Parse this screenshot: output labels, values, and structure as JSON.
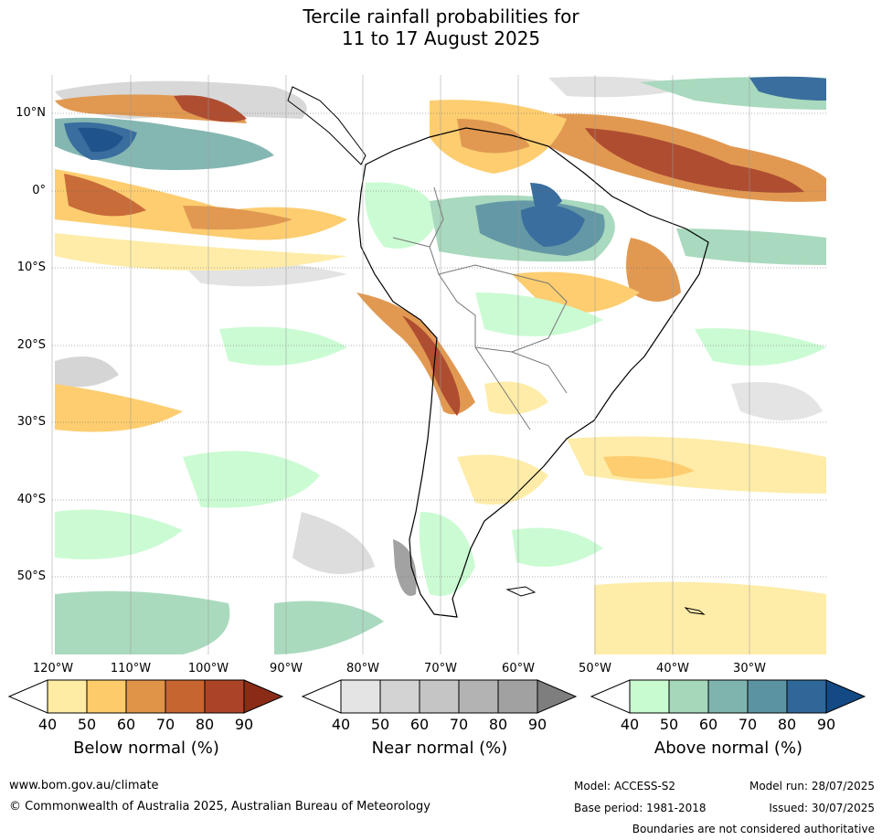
{
  "title_line1": "Tercile rainfall probabilities for",
  "title_line2": "11 to 17 August 2025",
  "lat_labels": [
    "10°N",
    "0°",
    "10°S",
    "20°S",
    "30°S",
    "40°S",
    "50°S"
  ],
  "lon_labels": [
    "120°W",
    "110°W",
    "100°W",
    "90°W",
    "80°W",
    "70°W",
    "60°W",
    "50°W",
    "40°W",
    "30°W"
  ],
  "legends": [
    {
      "title": "Below normal (%)",
      "ticks": [
        "40",
        "50",
        "60",
        "70",
        "80",
        "90"
      ],
      "colors": [
        "#ffffff",
        "#feeba4",
        "#fdcb69",
        "#e09448",
        "#c6652f",
        "#ab4427",
        "#8a2b17"
      ]
    },
    {
      "title": "Near normal (%)",
      "ticks": [
        "40",
        "50",
        "60",
        "70",
        "80",
        "90"
      ],
      "colors": [
        "#ffffff",
        "#e4e4e4",
        "#d3d3d3",
        "#c5c5c5",
        "#b3b3b3",
        "#a1a1a1",
        "#7e7e7e"
      ]
    },
    {
      "title": "Above normal (%)",
      "ticks": [
        "40",
        "50",
        "60",
        "70",
        "80",
        "90"
      ],
      "colors": [
        "#ffffff",
        "#c9fbd1",
        "#a5d8bb",
        "#7fb4ae",
        "#5c93a2",
        "#306799",
        "#134a85"
      ]
    }
  ],
  "footer": {
    "url": "www.bom.gov.au/climate",
    "copyright": "© Commonwealth of Australia 2025, Australian Bureau of Meteorology",
    "model": "Model: ACCESS-S2",
    "model_run": "Model run: 28/07/2025",
    "base_period": "Base period: 1981-2018",
    "issued": "Issued: 30/07/2025",
    "disclaimer": "Boundaries are not considered authoritative"
  }
}
